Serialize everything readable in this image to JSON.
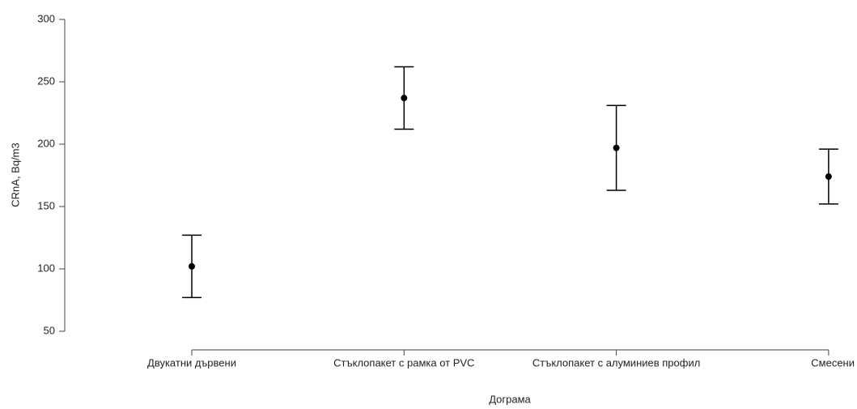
{
  "chart_data": {
    "type": "errorbar",
    "x_label": "Дограма",
    "y_label": "CRnA, Bq/m3",
    "categories": [
      "Двукатни дървени",
      "Стъклопакет с рамка от PVC",
      "Стъклопакет с алуминиев профил",
      "Смесени"
    ],
    "values": [
      102,
      237,
      197,
      174
    ],
    "errors": [
      25,
      25,
      34,
      22
    ],
    "color": "#000000",
    "ylim": [
      50,
      300
    ],
    "yticks": [
      50,
      100,
      150,
      200,
      250,
      300
    ]
  }
}
